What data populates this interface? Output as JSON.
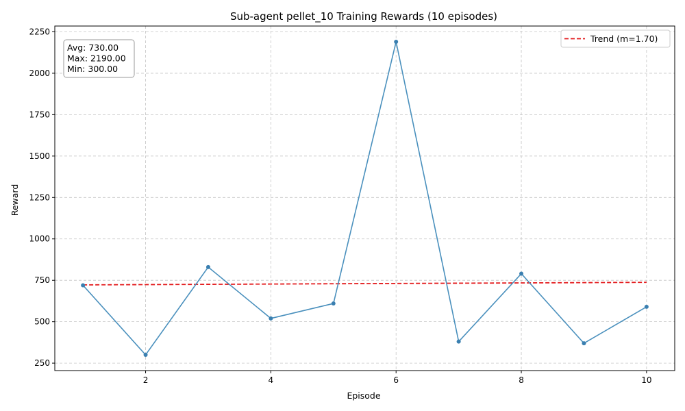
{
  "chart_data": {
    "type": "line",
    "title": "Sub-agent pellet_10 Training Rewards (10 episodes)",
    "xlabel": "Episode",
    "ylabel": "Reward",
    "xlim": [
      0.55,
      10.45
    ],
    "ylim": [
      205,
      2285
    ],
    "x_ticks": [
      2,
      4,
      6,
      8,
      10
    ],
    "y_ticks": [
      250,
      500,
      750,
      1000,
      1250,
      1500,
      1750,
      2000,
      2250
    ],
    "grid": true,
    "legend_position": "top-right",
    "series": [
      {
        "x": [
          1,
          2,
          3,
          4,
          5,
          6,
          7,
          8,
          9,
          10
        ],
        "values": [
          720,
          300,
          830,
          520,
          610,
          2190,
          380,
          790,
          370,
          590
        ],
        "color": "#4a90bd",
        "style": "solid",
        "marker": "circle"
      },
      {
        "name": "Trend (m=1.70)",
        "x": [
          1,
          10
        ],
        "values": [
          722.35,
          737.65
        ],
        "color": "#e31a1c",
        "style": "dashed"
      }
    ],
    "stats_box": {
      "position": "top-left",
      "lines": [
        "Avg: 730.00",
        "Max: 2190.00",
        "Min: 300.00"
      ]
    }
  }
}
